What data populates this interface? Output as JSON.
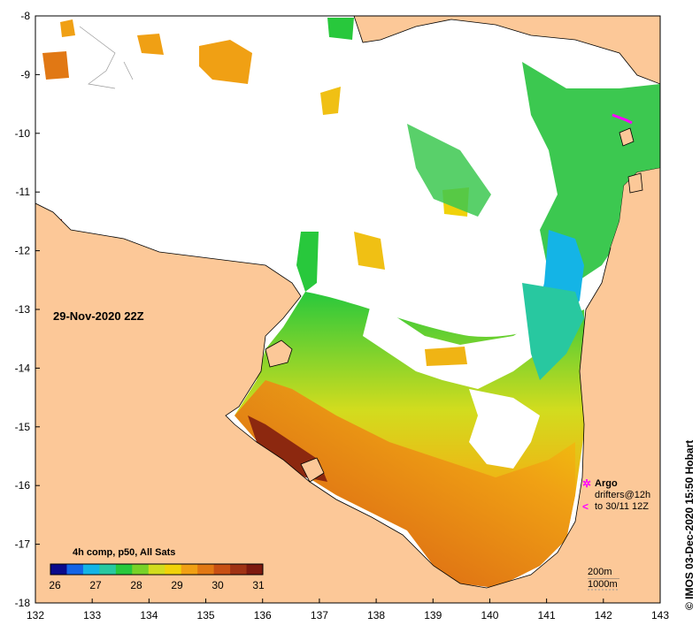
{
  "map": {
    "date": "29-Nov-2020 22Z",
    "colorbar_title": "4h comp, p50, All Sats",
    "colorbar_ticks": [
      "26",
      "27",
      "28",
      "29",
      "30",
      "31"
    ],
    "colorbar_colors": [
      "#0a0a8c",
      "#1464e6",
      "#14b4e6",
      "#28c8a0",
      "#28c83c",
      "#78d228",
      "#d2dc1e",
      "#f0d20a",
      "#f0a014",
      "#e17814",
      "#c85014",
      "#a03214",
      "#7d190f"
    ],
    "x_ticks": [
      "132",
      "133",
      "134",
      "135",
      "136",
      "137",
      "138",
      "139",
      "140",
      "141",
      "142",
      "143"
    ],
    "y_ticks": [
      "-8",
      "-9",
      "-10",
      "-11",
      "-12",
      "-13",
      "-14",
      "-15",
      "-16",
      "-17",
      "-18"
    ],
    "land_color": "#fcc898",
    "cloud_color": "#ffffff",
    "legend": {
      "argo_symbol": "✲",
      "argo_label": "Argo",
      "drifter_symbol": "<",
      "drifter_label_1": "drifters@12h",
      "drifter_label_2": "to 30/11 12Z"
    },
    "scale_1": "200m",
    "scale_2": "1000m",
    "credit": "© IMOS 03-Dec-2020 15:50 Hobart"
  }
}
